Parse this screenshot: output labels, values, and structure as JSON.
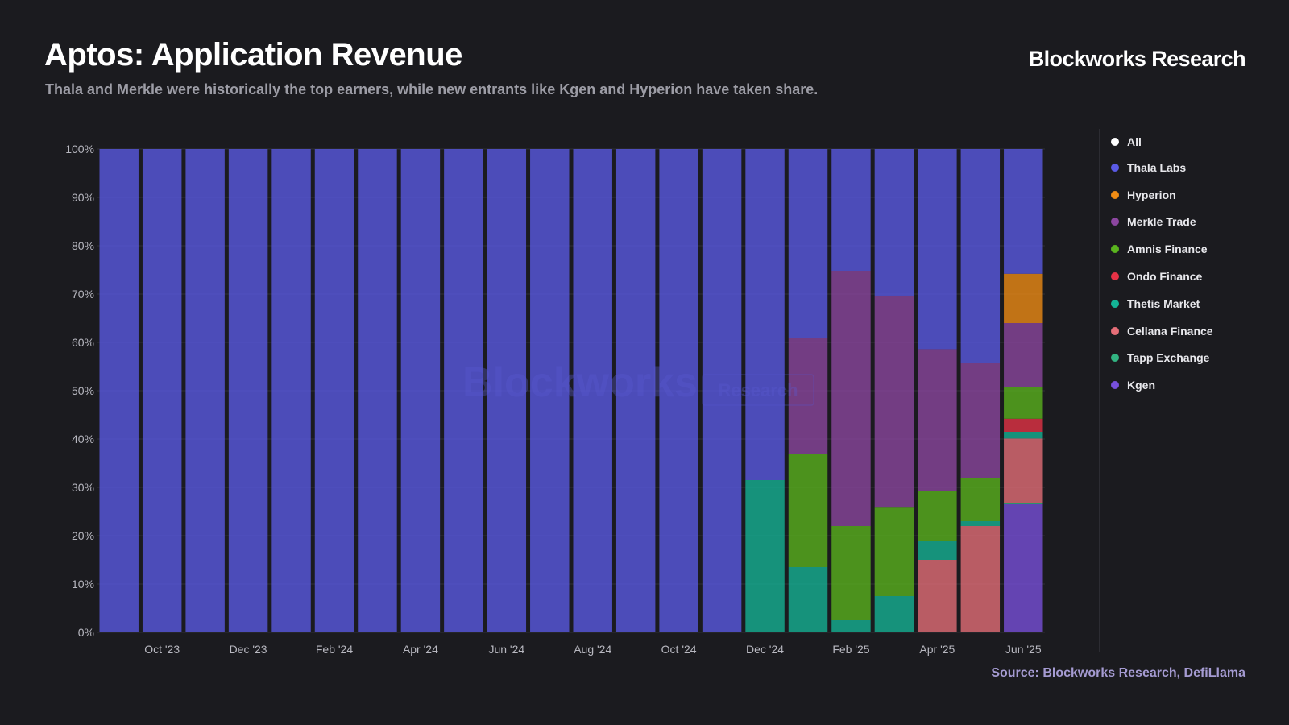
{
  "header": {
    "title": "Aptos: Application Revenue",
    "subtitle": "Thala and Merkle were historically the top earners, while new entrants like Kgen and Hyperion have taken share.",
    "brand": "Blockworks Research"
  },
  "footer": {
    "source": "Source: Blockworks Research, DefiLlama"
  },
  "watermark": {
    "main": "Blockworks",
    "box": "Research"
  },
  "legend": [
    {
      "label": "All",
      "color": "#ffffff"
    },
    {
      "label": "Thala Labs",
      "color": "#5a5ae6"
    },
    {
      "label": "Hyperion",
      "color": "#f08c14"
    },
    {
      "label": "Merkle Trade",
      "color": "#8c46a0"
    },
    {
      "label": "Amnis Finance",
      "color": "#5ab41e"
    },
    {
      "label": "Ondo Finance",
      "color": "#e63246"
    },
    {
      "label": "Thetis Market",
      "color": "#14b496"
    },
    {
      "label": "Cellana Finance",
      "color": "#e66e78"
    },
    {
      "label": "Tapp Exchange",
      "color": "#32b482"
    },
    {
      "label": "Kgen",
      "color": "#7850dc"
    }
  ],
  "chart_data": {
    "type": "bar",
    "stacked": true,
    "normalized": true,
    "x_tick_labels": [
      "Oct '23",
      "Dec '23",
      "Feb '24",
      "Apr '24",
      "Jun '24",
      "Aug '24",
      "Oct '24",
      "Dec '24",
      "Feb '25",
      "Apr '25",
      "Jun '25"
    ],
    "y_tick_labels": [
      "0%",
      "10%",
      "20%",
      "30%",
      "40%",
      "50%",
      "60%",
      "70%",
      "80%",
      "90%",
      "100%"
    ],
    "ylim": [
      0,
      100
    ],
    "categories": [
      "Sep '23",
      "Oct '23",
      "Nov '23",
      "Dec '23",
      "Jan '24",
      "Feb '24",
      "Mar '24",
      "Apr '24",
      "May '24",
      "Jun '24",
      "Jul '24",
      "Aug '24",
      "Sep '24",
      "Oct '24",
      "Nov '24",
      "Dec '24",
      "Jan '25",
      "Feb '25",
      "Mar '25",
      "Apr '25",
      "May '25",
      "Jun '25"
    ],
    "series": [
      {
        "name": "Kgen",
        "color": "#7850dc",
        "values": [
          0,
          0,
          0,
          0,
          0,
          0,
          0,
          0,
          0,
          0,
          0,
          0,
          0,
          0,
          0,
          0,
          0,
          0,
          0,
          0,
          0,
          26.5
        ]
      },
      {
        "name": "Tapp Exchange",
        "color": "#32b482",
        "values": [
          0,
          0,
          0,
          0,
          0,
          0,
          0,
          0,
          0,
          0,
          0,
          0,
          0,
          0,
          0,
          0,
          0,
          0,
          0,
          0,
          0,
          0.3
        ]
      },
      {
        "name": "Cellana Finance",
        "color": "#e66e78",
        "values": [
          0,
          0,
          0,
          0,
          0,
          0,
          0,
          0,
          0,
          0,
          0,
          0,
          0,
          0,
          0,
          0,
          0,
          0,
          0,
          15,
          22,
          13.3
        ]
      },
      {
        "name": "Thetis Market",
        "color": "#14b496",
        "values": [
          0,
          0,
          0,
          0,
          0,
          0,
          0,
          0,
          0,
          0,
          0,
          0,
          0,
          0,
          0,
          31.5,
          13.5,
          2.5,
          7.5,
          4,
          1,
          1.4
        ]
      },
      {
        "name": "Ondo Finance",
        "color": "#e63246",
        "values": [
          0,
          0,
          0,
          0,
          0,
          0,
          0,
          0,
          0,
          0,
          0,
          0,
          0,
          0,
          0,
          0,
          0,
          0,
          0,
          0,
          0,
          2.7
        ]
      },
      {
        "name": "Amnis Finance",
        "color": "#5ab41e",
        "values": [
          0,
          0,
          0,
          0,
          0,
          0,
          0,
          0,
          0,
          0,
          0,
          0,
          0,
          0,
          0,
          0,
          23.5,
          19.5,
          18.3,
          10.3,
          9,
          6.6
        ]
      },
      {
        "name": "Merkle Trade",
        "color": "#8c46a0",
        "values": [
          0,
          0,
          0,
          0,
          0,
          0,
          0,
          0,
          0,
          0,
          0,
          0,
          0,
          0,
          0,
          0,
          24,
          52.7,
          43.8,
          29.3,
          23.7,
          13.2
        ]
      },
      {
        "name": "Hyperion",
        "color": "#f08c14",
        "values": [
          0,
          0,
          0,
          0,
          0,
          0,
          0,
          0,
          0,
          0,
          0,
          0,
          0,
          0,
          0,
          0,
          0,
          0,
          0,
          0,
          0,
          10.2
        ]
      },
      {
        "name": "Thala Labs",
        "color": "#5a5ae6",
        "values": [
          100,
          100,
          100,
          100,
          100,
          100,
          100,
          100,
          100,
          100,
          100,
          100,
          100,
          100,
          100,
          68.5,
          39,
          25.3,
          30.4,
          41.4,
          44.3,
          25.8
        ]
      }
    ]
  }
}
